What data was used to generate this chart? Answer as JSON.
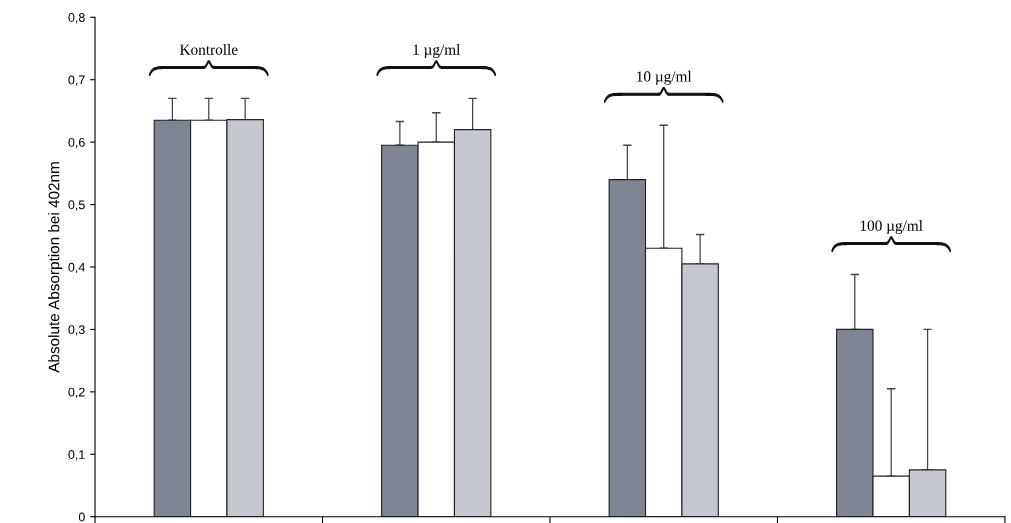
{
  "chart_data": {
    "type": "bar",
    "ylabel": "Absolute Absorption bei 402nm",
    "categories": [
      null,
      null,
      null,
      null
    ],
    "series": [
      {
        "color": "#7f8593",
        "values": [
          0.635,
          0.595,
          0.54,
          0.3
        ],
        "errors": [
          [
            0.635,
            0.67
          ],
          [
            0.595,
            0.633
          ],
          [
            0.54,
            0.595
          ],
          [
            0.3,
            0.388
          ]
        ]
      },
      {
        "color": "#ffffff",
        "values": [
          0.635,
          0.6,
          0.43,
          0.065
        ],
        "errors": [
          [
            0.635,
            0.67
          ],
          [
            0.6,
            0.647
          ],
          [
            0.43,
            0.627
          ],
          [
            0.065,
            0.205
          ]
        ]
      },
      {
        "color": "#c5c8cf",
        "values": [
          0.636,
          0.62,
          0.405,
          0.075
        ],
        "errors": [
          [
            0.636,
            0.67
          ],
          [
            0.62,
            0.67
          ],
          [
            0.405,
            0.452
          ],
          [
            0.075,
            0.3
          ]
        ]
      }
    ],
    "annotations": [
      "Kontrolle",
      "1 µg/ml",
      "10 µg/ml",
      "100 µg/ml"
    ],
    "ylim": [
      0,
      0.8
    ],
    "yticks": [
      {
        "value": 0,
        "label": "0"
      },
      {
        "value": 0.1,
        "label": "0,1"
      },
      {
        "value": 0.2,
        "label": "0,2"
      },
      {
        "value": 0.3,
        "label": "0,3"
      },
      {
        "value": 0.4,
        "label": "0,4"
      },
      {
        "value": 0.5,
        "label": "0,5"
      },
      {
        "value": 0.6,
        "label": "0,6"
      },
      {
        "value": 0.7,
        "label": "0,7"
      },
      {
        "value": 0.8,
        "label": "0,8"
      }
    ],
    "tick_labels": "y",
    "grid": false,
    "legend": false
  }
}
